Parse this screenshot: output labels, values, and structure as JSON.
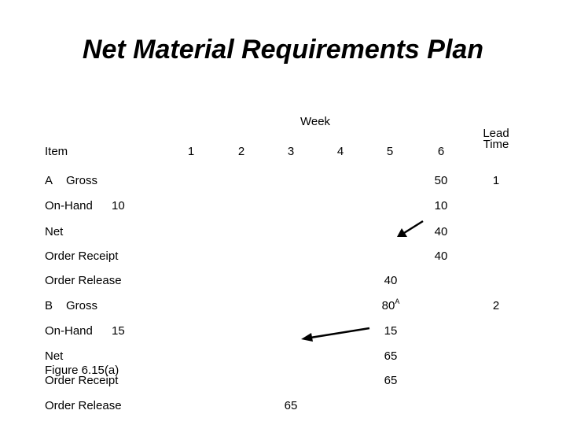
{
  "title": "Net Material Requirements Plan",
  "header": {
    "week_label": "Week",
    "item_label": "Item",
    "weeks": [
      "1",
      "2",
      "3",
      "4",
      "5",
      "6"
    ],
    "lead_time_line1": "Lead",
    "lead_time_line2": "Time"
  },
  "item_a": {
    "name": "A",
    "gross_label": "Gross",
    "gross_wk6": "50",
    "lead_time": "1",
    "onhand_label": "On-Hand",
    "onhand_value": "10",
    "onhand_wk6": "10",
    "net_label": "Net",
    "net_wk6": "40",
    "order_receipt_label": "Order Receipt",
    "order_receipt_wk6": "40",
    "order_release_label": "Order Release",
    "order_release_wk5": "40"
  },
  "item_b": {
    "name": "B",
    "gross_label": "Gross",
    "gross_wk5": "80",
    "gross_wk5_sup": "A",
    "lead_time": "2",
    "onhand_label": "On-Hand",
    "onhand_value": "15",
    "onhand_wk5": "15",
    "net_label": "Net",
    "net_wk5": "65",
    "order_receipt_label": "Order Receipt",
    "order_receipt_wk5": "65",
    "order_release_label": "Order Release",
    "order_release_wk3": "65"
  },
  "figure_caption": "Figure 6.15(a)"
}
